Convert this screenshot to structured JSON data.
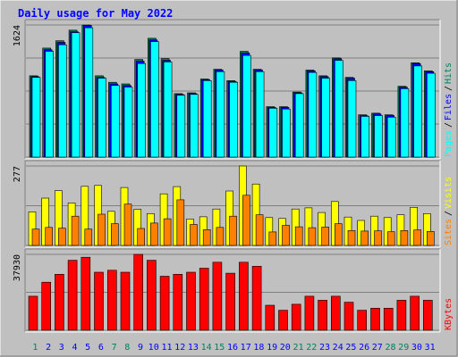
{
  "colors": {
    "background": "#c0c0c0",
    "hits": "#00805c",
    "files": "#0000ff",
    "pages": "#00ffff",
    "visits": "#ffff00",
    "sites": "#ff8000",
    "kbytes": "#ff0000",
    "title": "#0000ff",
    "weekend_day": "#00805c",
    "weekday_day": "#0000ff"
  },
  "chart_data": {
    "type": "bar",
    "title": "Daily usage for May 2022",
    "categories": [
      "1",
      "2",
      "3",
      "4",
      "5",
      "6",
      "7",
      "8",
      "9",
      "10",
      "11",
      "12",
      "13",
      "14",
      "15",
      "16",
      "17",
      "18",
      "19",
      "20",
      "21",
      "22",
      "23",
      "24",
      "25",
      "26",
      "27",
      "28",
      "29",
      "30",
      "31"
    ],
    "weekend_days": [
      "1",
      "7",
      "8",
      "14",
      "15",
      "21",
      "22",
      "28",
      "29"
    ],
    "panels": [
      {
        "id": "hits-files-pages",
        "ymax_label": "1624",
        "ylim": [
          0,
          1624
        ],
        "side_legend": [
          {
            "text": "Pages",
            "color": "#00ffff"
          },
          {
            "text": "Files",
            "color": "#0000ff"
          },
          {
            "text": "Hits",
            "color": "#00805c"
          }
        ],
        "series": [
          {
            "name": "Hits",
            "values": [
              1000,
              1340,
              1430,
              1560,
              1640,
              1000,
              920,
              900,
              1200,
              1460,
              1210,
              780,
              790,
              960,
              1080,
              940,
              1300,
              1080,
              620,
              620,
              800,
              1070,
              1000,
              1220,
              980,
              520,
              540,
              520,
              870,
              1160,
              1060
            ]
          },
          {
            "name": "Files",
            "values": [
              990,
              1320,
              1410,
              1540,
              1620,
              980,
              900,
              880,
              1180,
              1440,
              1190,
              770,
              780,
              950,
              1070,
              930,
              1280,
              1070,
              610,
              610,
              790,
              1060,
              990,
              1210,
              970,
              510,
              530,
              510,
              860,
              1150,
              1050
            ]
          },
          {
            "name": "Pages",
            "values": [
              980,
              1300,
              1380,
              1530,
              1590,
              970,
              880,
              860,
              1150,
              1420,
              1170,
              760,
              770,
              940,
              1050,
              920,
              1250,
              1050,
              600,
              590,
              780,
              1040,
              970,
              1190,
              940,
              500,
              510,
              490,
              840,
              1120,
              1030
            ]
          }
        ]
      },
      {
        "id": "visits-sites",
        "ymax_label": "277",
        "ylim": [
          0,
          277
        ],
        "side_legend": [
          {
            "text": "Sites",
            "color": "#ff8000"
          },
          {
            "text": "Visits",
            "color": "#ffff00"
          }
        ],
        "series": [
          {
            "name": "Visits",
            "values": [
              117,
              165,
              191,
              148,
              206,
              209,
              119,
              202,
              126,
              111,
              180,
              205,
              92,
              100,
              127,
              190,
              277,
              214,
              97,
              94,
              127,
              131,
              115,
              153,
              99,
              87,
              102,
              97,
              107,
              133,
              111
            ]
          },
          {
            "name": "Sites",
            "values": [
              57,
              63,
              60,
              102,
              57,
              109,
              76,
              144,
              59,
              78,
              93,
              159,
              73,
              55,
              63,
              102,
              175,
              107,
              47,
              70,
              65,
              62,
              64,
              76,
              52,
              50,
              51,
              48,
              52,
              54,
              49
            ]
          }
        ]
      },
      {
        "id": "kbytes",
        "ymax_label": "37930",
        "ylim": [
          0,
          37930
        ],
        "side_legend": [
          {
            "text": "KBytes",
            "color": "#ff0000"
          }
        ],
        "series": [
          {
            "name": "KBytes",
            "values": [
              17000,
              24000,
              28000,
              35000,
              36500,
              29000,
              30000,
              29000,
              38000,
              35000,
              27000,
              28000,
              29000,
              31000,
              34000,
              28500,
              34000,
              32000,
              12500,
              10000,
              13000,
              17000,
              15000,
              17000,
              14000,
              10000,
              11000,
              11000,
              15000,
              17000,
              15000
            ]
          }
        ]
      }
    ]
  }
}
